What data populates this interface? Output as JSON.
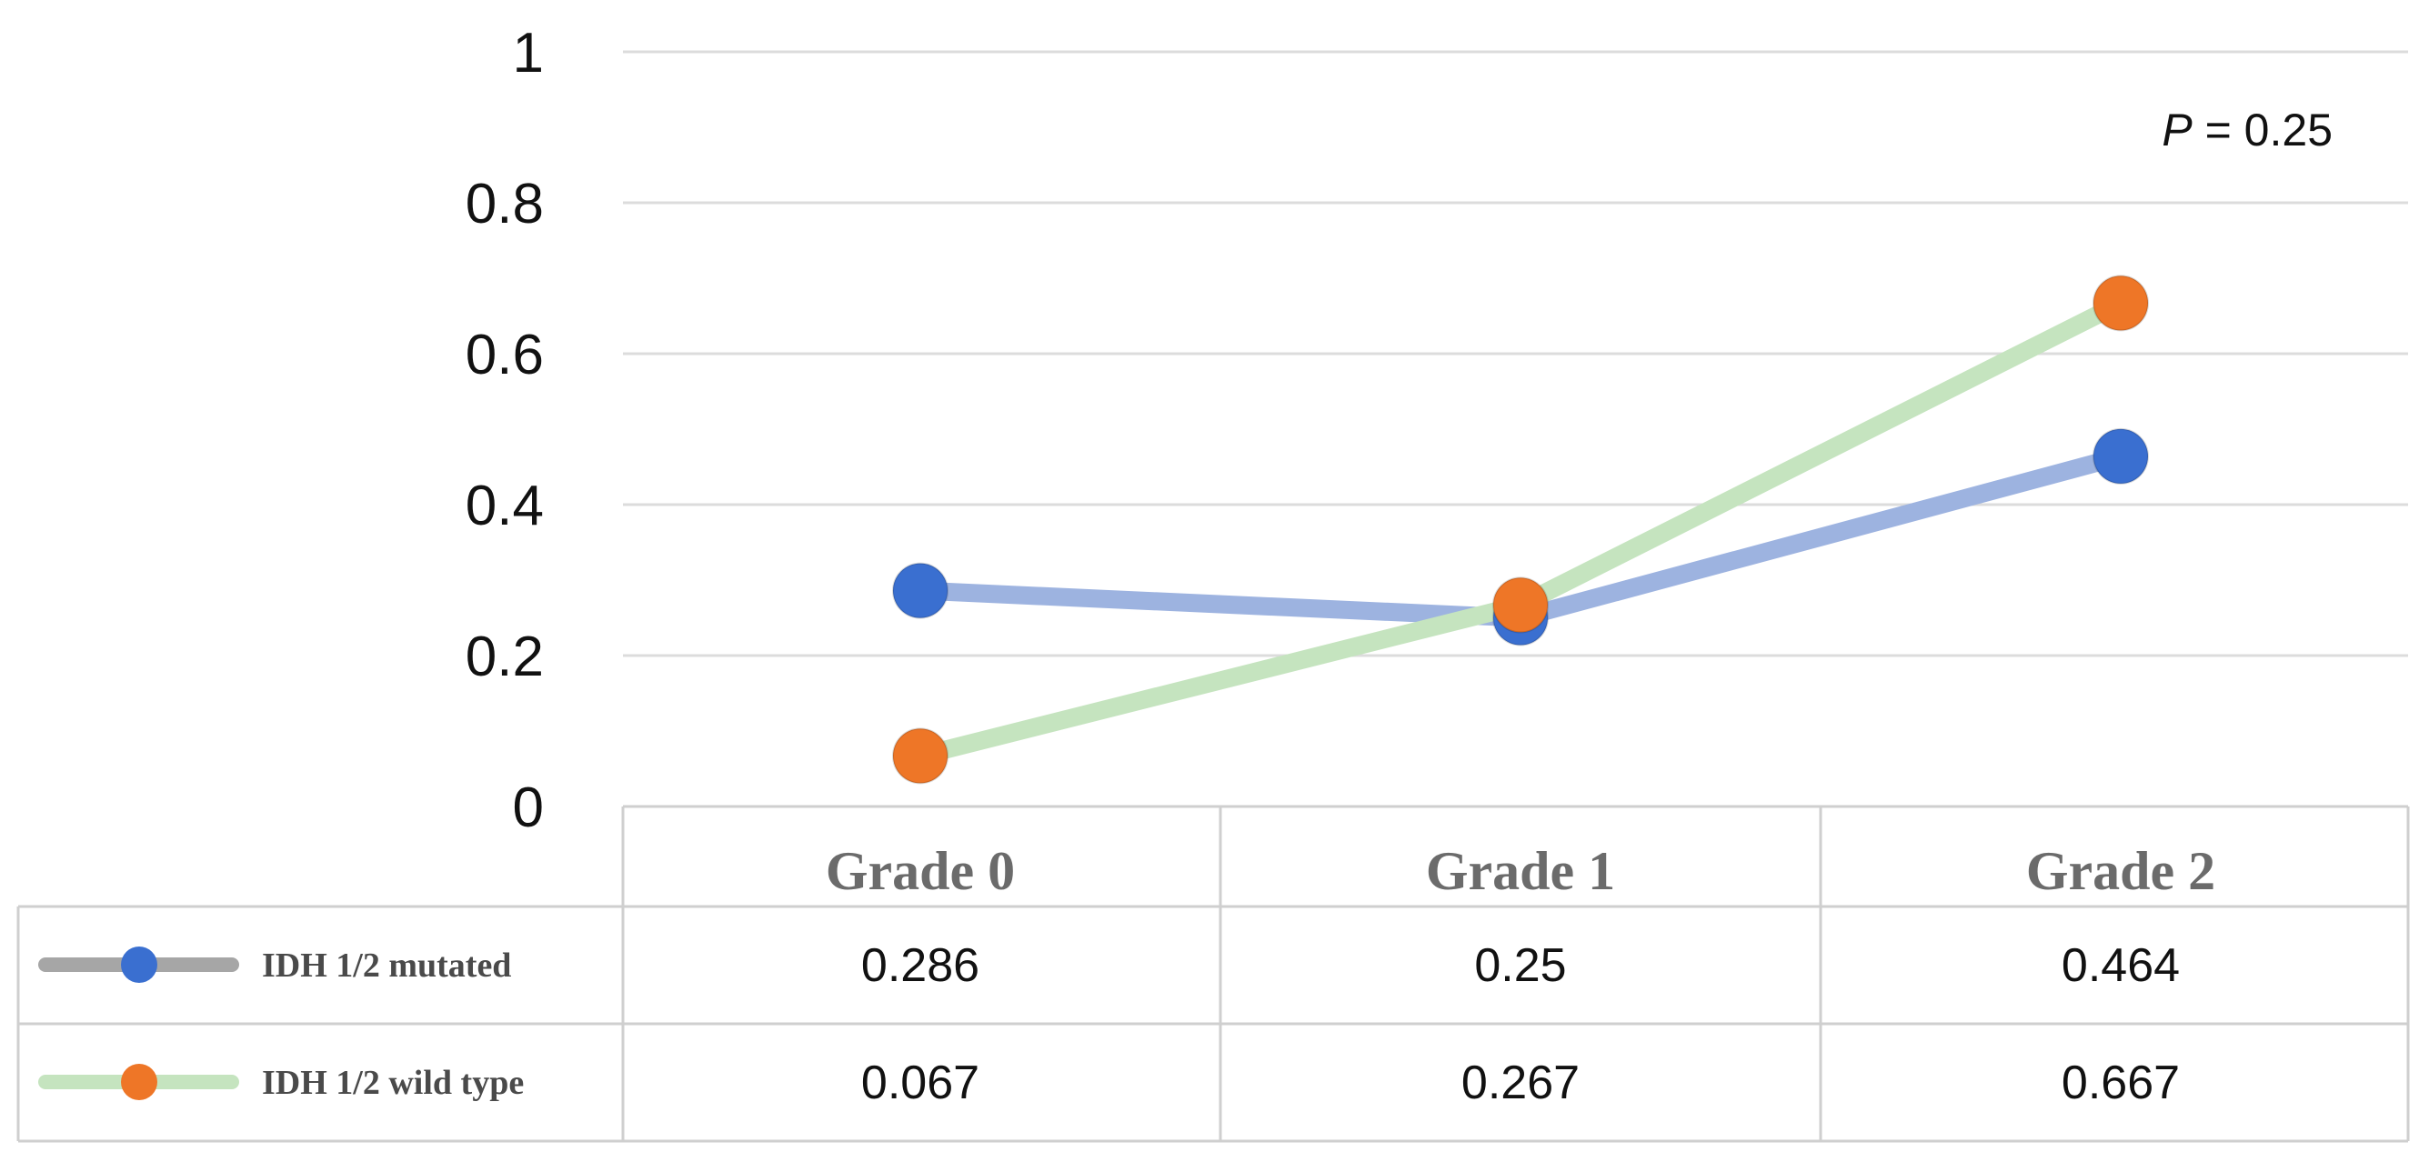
{
  "chart_data": {
    "type": "line",
    "title": "",
    "xlabel": "",
    "ylabel": "",
    "categories": [
      "Grade 0",
      "Grade 1",
      "Grade 2"
    ],
    "ylim": [
      0,
      1
    ],
    "yticks": [
      "0",
      "0.2",
      "0.4",
      "0.6",
      "0.8",
      "1"
    ],
    "ytick_values": [
      0,
      0.2,
      0.4,
      0.6,
      0.8,
      1
    ],
    "grid": "horizontal",
    "annotation": {
      "prefix": "P",
      "rest": " = 0.25"
    },
    "data_table": true,
    "series": [
      {
        "name": "IDH 1/2 mutated",
        "values": [
          0.286,
          0.25,
          0.464
        ],
        "value_labels": [
          "0.286",
          "0.25",
          "0.464"
        ],
        "line_color": "#9db3e0",
        "marker_color": "#3a6fd0",
        "legend_line_color": "#a6a6a6"
      },
      {
        "name": "IDH 1/2 wild type",
        "values": [
          0.067,
          0.267,
          0.667
        ],
        "value_labels": [
          "0.067",
          "0.267",
          "0.667"
        ],
        "line_color": "#c5e4bf",
        "marker_color": "#ee7627",
        "legend_line_color": "#c5e4bf"
      }
    ]
  }
}
